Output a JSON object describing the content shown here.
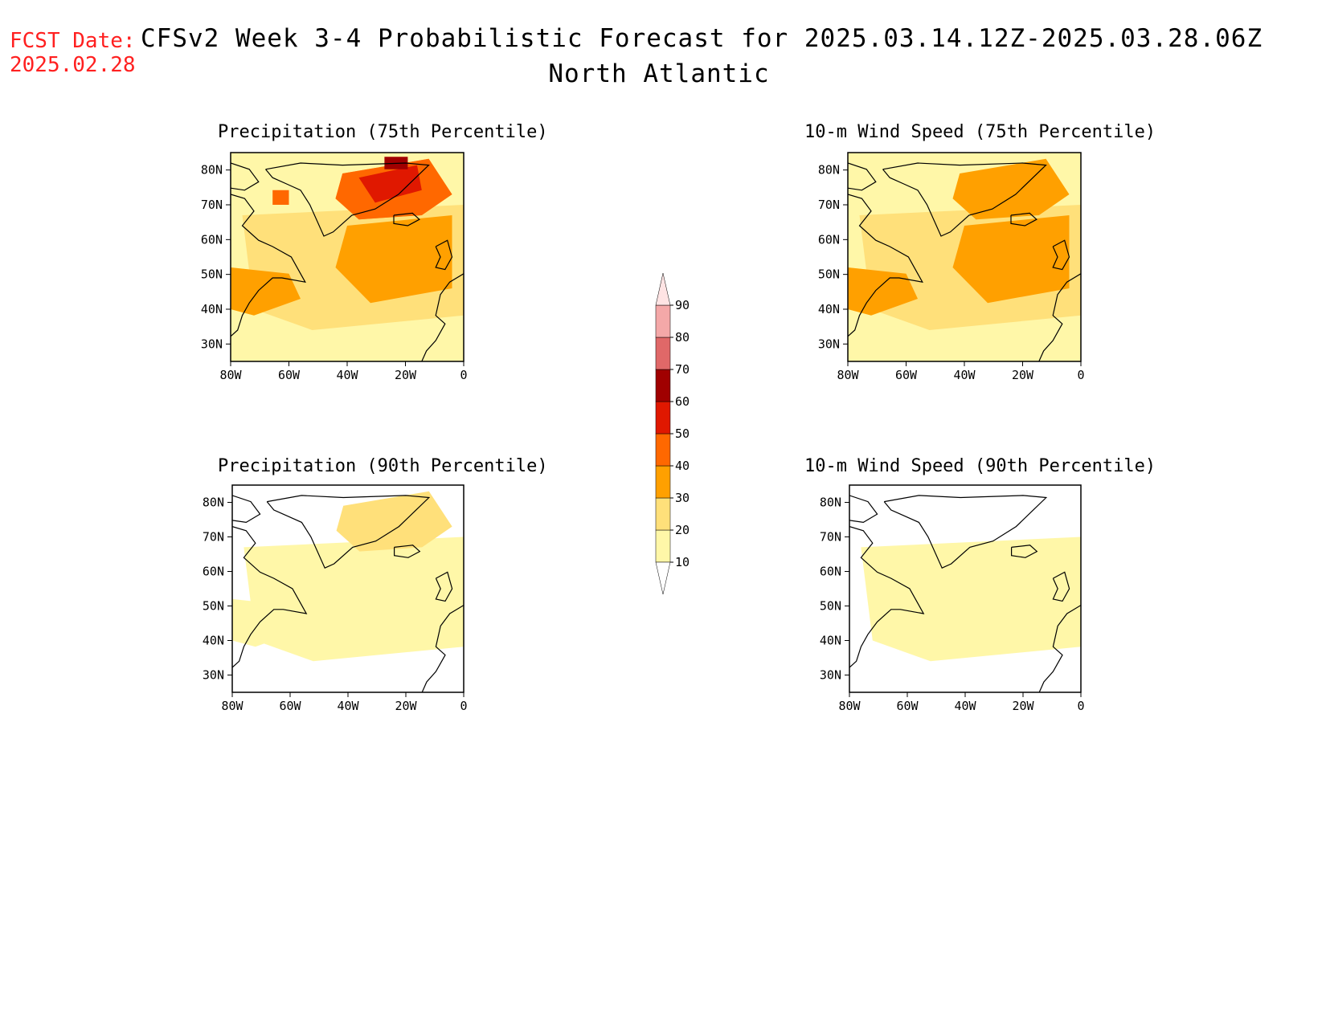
{
  "header": {
    "fcst_label": "FCST Date:",
    "fcst_date": "2025.02.28",
    "title": "CFSv2 Week 3-4 Probabilistic Forecast for 2025.03.14.12Z-2025.03.28.06Z",
    "subtitle": "North Atlantic"
  },
  "axes": {
    "lat_labels": [
      "80N",
      "70N",
      "60N",
      "50N",
      "40N",
      "30N"
    ],
    "lon_labels": [
      "80W",
      "60W",
      "40W",
      "20W",
      "0"
    ]
  },
  "panels": [
    {
      "id": "precip75",
      "title": "Precipitation (75th Percentile)",
      "intensity": 3
    },
    {
      "id": "wind75",
      "title": "10-m Wind Speed (75th Percentile)",
      "intensity": 2
    },
    {
      "id": "precip90",
      "title": "Precipitation (90th Percentile)",
      "intensity": 1
    },
    {
      "id": "wind90",
      "title": "10-m Wind Speed (90th Percentile)",
      "intensity": 0
    }
  ],
  "colorbar": {
    "levels": [
      "10",
      "20",
      "30",
      "40",
      "50",
      "60",
      "70",
      "80",
      "90"
    ],
    "colors": [
      "#ffffff",
      "#fff7a8",
      "#ffe07a",
      "#ffa000",
      "#ff6800",
      "#e01800",
      "#a00000",
      "#e06868",
      "#f4a8a8",
      "#ffe4e4"
    ]
  },
  "colors": {
    "title_red": "#ff2020",
    "pale_yellow": "#fff7a8",
    "yellow": "#ffe07a",
    "light_orange": "#ffa000",
    "orange": "#ff6800",
    "red": "#e01800",
    "dark_red": "#a00000"
  }
}
